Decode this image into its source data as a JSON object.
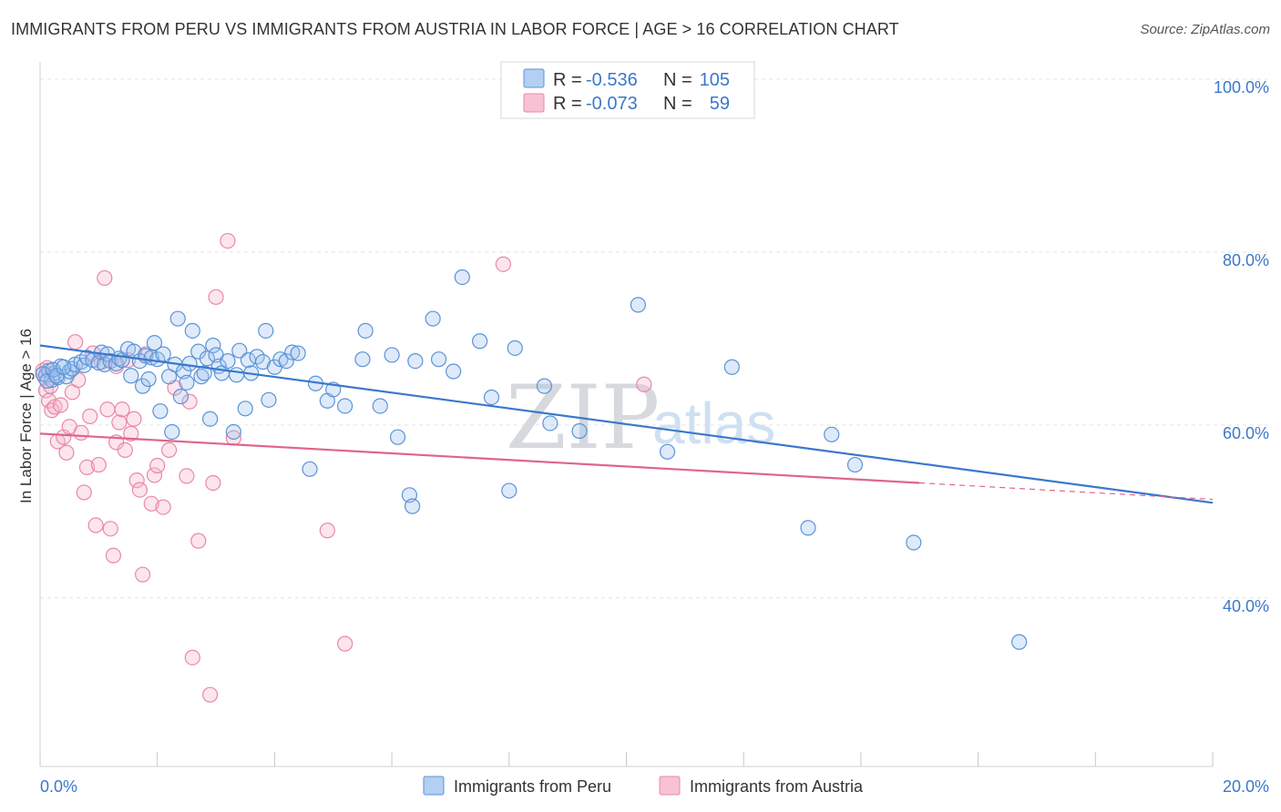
{
  "title": "IMMIGRANTS FROM PERU VS IMMIGRANTS FROM AUSTRIA IN LABOR FORCE | AGE > 16 CORRELATION CHART",
  "source": "Source: ZipAtlas.com",
  "watermark": {
    "zip": "ZIP",
    "atlas": "atlas"
  },
  "legend": {
    "r_label": "R =",
    "n_label": "N =",
    "rows": [
      {
        "r": "-0.536",
        "n": "105",
        "fill": "#b3cff2",
        "stroke": "#5b93d8"
      },
      {
        "r": "-0.073",
        "n": "59",
        "fill": "#f7c2d3",
        "stroke": "#e888a8"
      }
    ]
  },
  "chart_data": {
    "type": "scatter",
    "title": "IMMIGRANTS FROM PERU VS IMMIGRANTS FROM AUSTRIA IN LABOR FORCE | AGE > 16 CORRELATION CHART",
    "xlabel": "",
    "ylabel": "In Labor Force | Age > 16",
    "xlim": [
      0,
      20
    ],
    "ylim": [
      20.5,
      102
    ],
    "x_tick_labels": [
      "0.0%",
      "20.0%"
    ],
    "y_ticks": [
      40,
      60,
      80,
      100
    ],
    "y_tick_labels": [
      "40.0%",
      "60.0%",
      "80.0%",
      "100.0%"
    ],
    "grid": "horizontal dashed",
    "legend_position": "top-center",
    "series": [
      {
        "name": "Immigrants from Peru",
        "color": "#3a78cc",
        "fill": "rgba(160,195,238,0.35)",
        "stroke": "#5b93d8",
        "R": -0.536,
        "N": 105,
        "trend": {
          "x0": 0.0,
          "y0": 69.2,
          "x1": 20.0,
          "y1": 51.0
        },
        "points": [
          [
            0.1,
            65.8
          ],
          [
            0.15,
            66.3
          ],
          [
            0.2,
            65.2
          ],
          [
            0.25,
            66.0
          ],
          [
            0.3,
            65.5
          ],
          [
            0.35,
            66.8
          ],
          [
            0.45,
            65.6
          ],
          [
            0.5,
            66.2
          ],
          [
            0.55,
            66.5
          ],
          [
            0.6,
            67.0
          ],
          [
            0.7,
            67.3
          ],
          [
            0.75,
            66.9
          ],
          [
            0.8,
            67.8
          ],
          [
            0.9,
            67.5
          ],
          [
            1.0,
            67.2
          ],
          [
            1.05,
            68.4
          ],
          [
            1.1,
            67.0
          ],
          [
            1.15,
            68.2
          ],
          [
            1.2,
            67.4
          ],
          [
            1.3,
            67.1
          ],
          [
            1.35,
            67.7
          ],
          [
            1.4,
            67.5
          ],
          [
            1.5,
            68.8
          ],
          [
            1.55,
            65.7
          ],
          [
            1.6,
            68.5
          ],
          [
            1.7,
            67.4
          ],
          [
            1.75,
            64.5
          ],
          [
            1.8,
            68.0
          ],
          [
            1.85,
            65.3
          ],
          [
            1.9,
            67.8
          ],
          [
            1.95,
            69.5
          ],
          [
            2.0,
            67.6
          ],
          [
            2.05,
            61.6
          ],
          [
            2.1,
            68.2
          ],
          [
            2.2,
            65.6
          ],
          [
            2.25,
            59.2
          ],
          [
            2.3,
            67.0
          ],
          [
            2.35,
            72.3
          ],
          [
            2.4,
            63.3
          ],
          [
            2.45,
            66.2
          ],
          [
            2.5,
            64.9
          ],
          [
            2.55,
            67.1
          ],
          [
            2.6,
            70.9
          ],
          [
            2.7,
            68.5
          ],
          [
            2.75,
            65.6
          ],
          [
            2.8,
            66.0
          ],
          [
            2.85,
            67.7
          ],
          [
            2.9,
            60.7
          ],
          [
            2.95,
            69.2
          ],
          [
            3.0,
            68.1
          ],
          [
            3.05,
            66.8
          ],
          [
            3.1,
            66.0
          ],
          [
            3.2,
            67.4
          ],
          [
            3.3,
            59.2
          ],
          [
            3.35,
            65.8
          ],
          [
            3.4,
            68.6
          ],
          [
            3.5,
            61.9
          ],
          [
            3.55,
            67.5
          ],
          [
            3.6,
            66.0
          ],
          [
            3.7,
            67.9
          ],
          [
            3.8,
            67.3
          ],
          [
            3.85,
            70.9
          ],
          [
            3.9,
            62.9
          ],
          [
            4.0,
            66.7
          ],
          [
            4.1,
            67.6
          ],
          [
            4.2,
            67.4
          ],
          [
            4.3,
            68.4
          ],
          [
            4.4,
            68.3
          ],
          [
            4.6,
            54.9
          ],
          [
            4.7,
            64.8
          ],
          [
            4.9,
            62.8
          ],
          [
            5.0,
            64.1
          ],
          [
            5.2,
            62.2
          ],
          [
            5.5,
            67.6
          ],
          [
            5.55,
            70.9
          ],
          [
            5.8,
            62.2
          ],
          [
            6.0,
            68.1
          ],
          [
            6.1,
            58.6
          ],
          [
            6.3,
            51.9
          ],
          [
            6.35,
            50.6
          ],
          [
            6.4,
            67.4
          ],
          [
            6.7,
            72.3
          ],
          [
            6.8,
            67.6
          ],
          [
            7.05,
            66.2
          ],
          [
            7.2,
            77.1
          ],
          [
            7.5,
            69.7
          ],
          [
            7.7,
            63.2
          ],
          [
            8.0,
            52.4
          ],
          [
            8.1,
            68.9
          ],
          [
            8.6,
            64.5
          ],
          [
            8.7,
            60.2
          ],
          [
            9.2,
            59.3
          ],
          [
            10.2,
            73.9
          ],
          [
            10.7,
            56.9
          ],
          [
            11.8,
            66.7
          ],
          [
            13.1,
            48.1
          ],
          [
            13.5,
            58.9
          ],
          [
            13.9,
            55.4
          ],
          [
            14.9,
            46.4
          ],
          [
            16.7,
            34.9
          ],
          [
            0.05,
            65.9
          ],
          [
            0.12,
            65.1
          ],
          [
            0.22,
            66.4
          ],
          [
            0.28,
            65.7
          ],
          [
            0.4,
            66.7
          ]
        ]
      },
      {
        "name": "Immigrants from Austria",
        "color": "#e0648d",
        "fill": "rgba(245,180,203,0.35)",
        "stroke": "#e888a8",
        "R": -0.073,
        "N": 59,
        "trend": {
          "x0": 0.0,
          "y0": 59.0,
          "x1": 15.0,
          "y1": 53.3
        },
        "trend_dashed": {
          "x0": 15.0,
          "y0": 53.3,
          "x1": 20.0,
          "y1": 51.4
        },
        "points": [
          [
            0.05,
            66.3
          ],
          [
            0.08,
            65.5
          ],
          [
            0.1,
            64.0
          ],
          [
            0.12,
            66.6
          ],
          [
            0.15,
            62.8
          ],
          [
            0.2,
            61.7
          ],
          [
            0.25,
            62.1
          ],
          [
            0.3,
            58.1
          ],
          [
            0.35,
            62.3
          ],
          [
            0.4,
            58.6
          ],
          [
            0.45,
            56.8
          ],
          [
            0.5,
            59.8
          ],
          [
            0.55,
            63.8
          ],
          [
            0.6,
            69.6
          ],
          [
            0.7,
            59.1
          ],
          [
            0.75,
            52.2
          ],
          [
            0.8,
            55.1
          ],
          [
            0.85,
            61.0
          ],
          [
            0.9,
            68.3
          ],
          [
            0.95,
            48.4
          ],
          [
            1.0,
            55.4
          ],
          [
            1.05,
            67.3
          ],
          [
            1.1,
            77.0
          ],
          [
            1.15,
            61.8
          ],
          [
            1.2,
            48.0
          ],
          [
            1.25,
            44.9
          ],
          [
            1.3,
            58.0
          ],
          [
            1.35,
            60.3
          ],
          [
            1.4,
            61.8
          ],
          [
            1.45,
            57.1
          ],
          [
            1.5,
            67.5
          ],
          [
            1.55,
            59.0
          ],
          [
            1.6,
            60.7
          ],
          [
            1.65,
            53.6
          ],
          [
            1.7,
            52.5
          ],
          [
            1.75,
            42.7
          ],
          [
            1.8,
            68.2
          ],
          [
            1.9,
            50.9
          ],
          [
            1.95,
            54.2
          ],
          [
            2.0,
            55.3
          ],
          [
            2.1,
            50.5
          ],
          [
            2.2,
            57.1
          ],
          [
            2.3,
            64.3
          ],
          [
            2.5,
            54.1
          ],
          [
            2.55,
            62.7
          ],
          [
            2.6,
            33.1
          ],
          [
            2.7,
            46.6
          ],
          [
            2.9,
            28.8
          ],
          [
            2.95,
            53.3
          ],
          [
            3.0,
            74.8
          ],
          [
            3.2,
            81.3
          ],
          [
            3.3,
            58.5
          ],
          [
            4.9,
            47.8
          ],
          [
            5.2,
            34.7
          ],
          [
            7.9,
            78.6
          ],
          [
            10.3,
            64.7
          ],
          [
            0.18,
            64.5
          ],
          [
            0.65,
            65.2
          ],
          [
            1.3,
            66.8
          ]
        ]
      }
    ]
  },
  "bottom_legend": [
    {
      "label": "Immigrants from Peru",
      "fill": "#b3cff2",
      "stroke": "#5b93d8"
    },
    {
      "label": "Immigrants from Austria",
      "fill": "#f7c2d3",
      "stroke": "#e888a8"
    }
  ]
}
